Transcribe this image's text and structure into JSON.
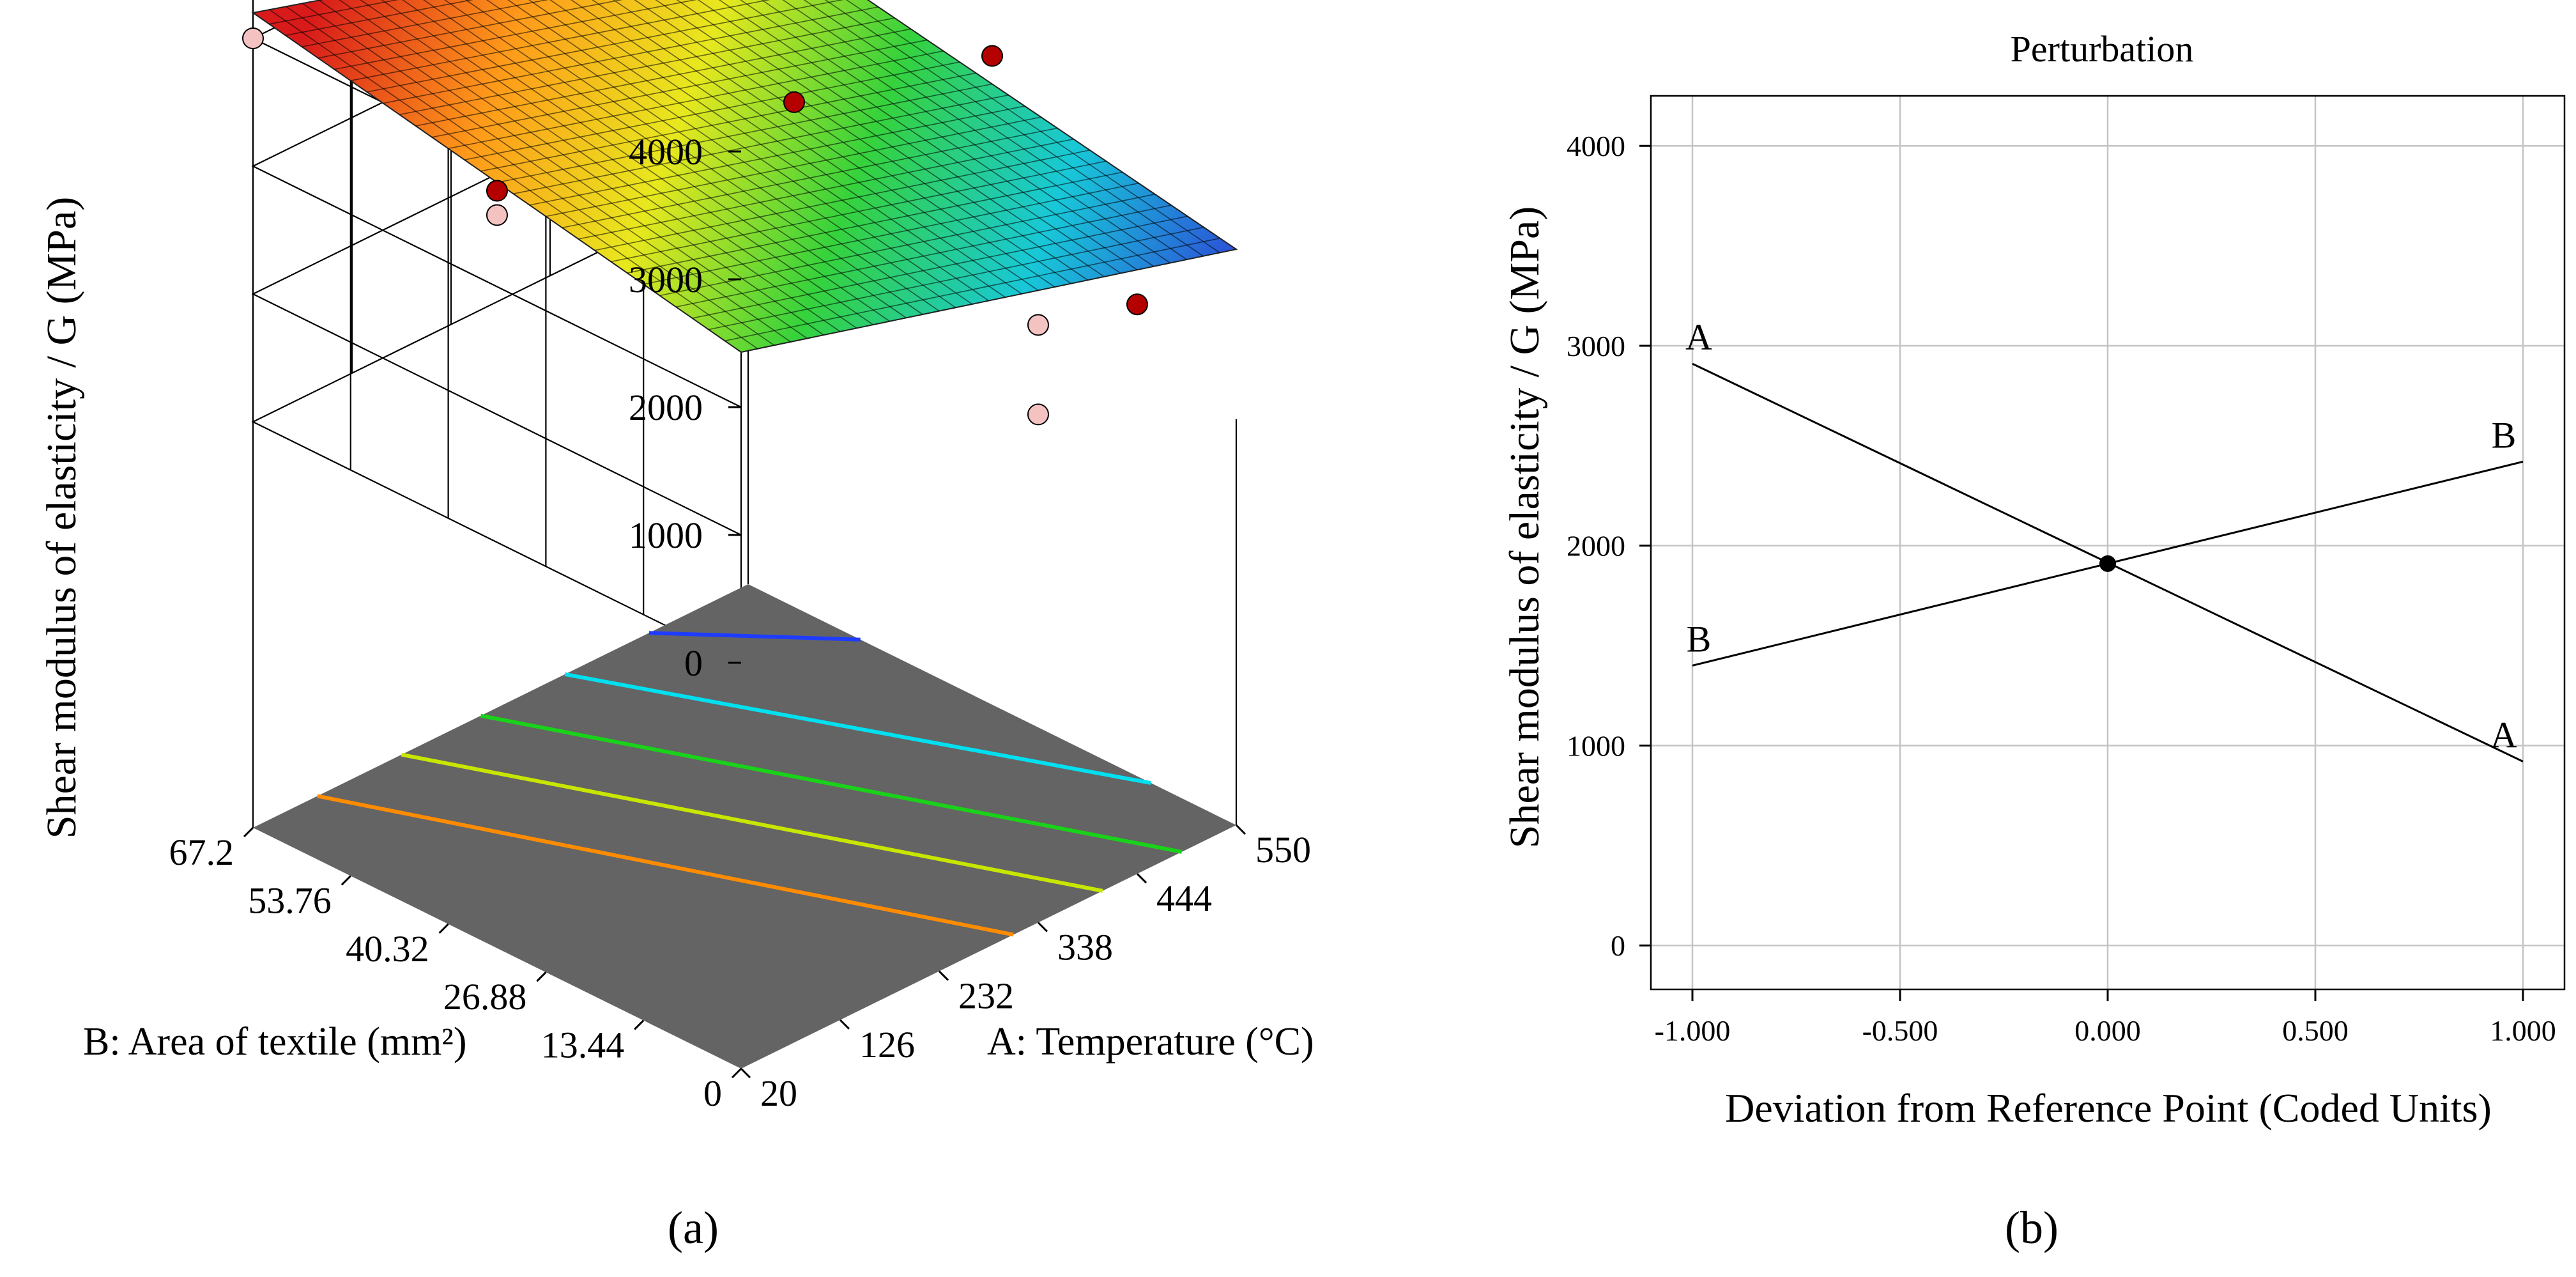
{
  "chart_data": [
    {
      "type": "surface3d",
      "panel_label": "(a)",
      "zlabel": "Shear modulus of elasticity / G (MPa)",
      "xlabel": "A: Temperature (°C)",
      "ylabel": "B: Area of textile (mm²)",
      "x_ticks": [
        "20",
        "126",
        "232",
        "338",
        "444",
        "550"
      ],
      "y_ticks": [
        "0",
        "13.44",
        "26.88",
        "40.32",
        "53.76",
        "67.2"
      ],
      "z_ticks": [
        "0",
        "1000",
        "2000",
        "3000",
        "4000"
      ],
      "xlim": [
        20,
        550
      ],
      "ylim": [
        0,
        67.2
      ],
      "zlim": [
        0,
        4000
      ],
      "surface_corners": [
        {
          "A": 20,
          "B": 0,
          "G": 2430
        },
        {
          "A": 20,
          "B": 67.2,
          "G": 3200
        },
        {
          "A": 550,
          "B": 67.2,
          "G": 2030
        },
        {
          "A": 550,
          "B": 0,
          "G": 1330
        }
      ],
      "contour_colors": [
        "#ff8c00",
        "#c8e600",
        "#19d219",
        "#00e0f0",
        "#1e3cff"
      ],
      "colors": {
        "high": "#d62020",
        "low": "#1e2ad0",
        "floor": "#646464",
        "point_above": "#b50000",
        "point_below": "#f5c2c2"
      }
    },
    {
      "type": "line",
      "panel_label": "(b)",
      "title": "Perturbation",
      "xlabel": "Deviation from Reference Point (Coded Units)",
      "ylabel": "Shear modulus of elasticity / G (MPa)",
      "xlim": [
        -1.1,
        1.1
      ],
      "ylim": [
        -220,
        4250
      ],
      "x_ticks": [
        "-1.000",
        "-0.500",
        "0.000",
        "0.500",
        "1.000"
      ],
      "y_ticks": [
        "0",
        "1000",
        "2000",
        "3000",
        "4000"
      ],
      "series": [
        {
          "name": "A",
          "x": [
            -1.0,
            1.0
          ],
          "y": [
            2910,
            920
          ]
        },
        {
          "name": "B",
          "x": [
            -1.0,
            1.0
          ],
          "y": [
            1400,
            2420
          ]
        }
      ],
      "reference_point": {
        "x": 0.0,
        "y": 1910
      }
    }
  ]
}
